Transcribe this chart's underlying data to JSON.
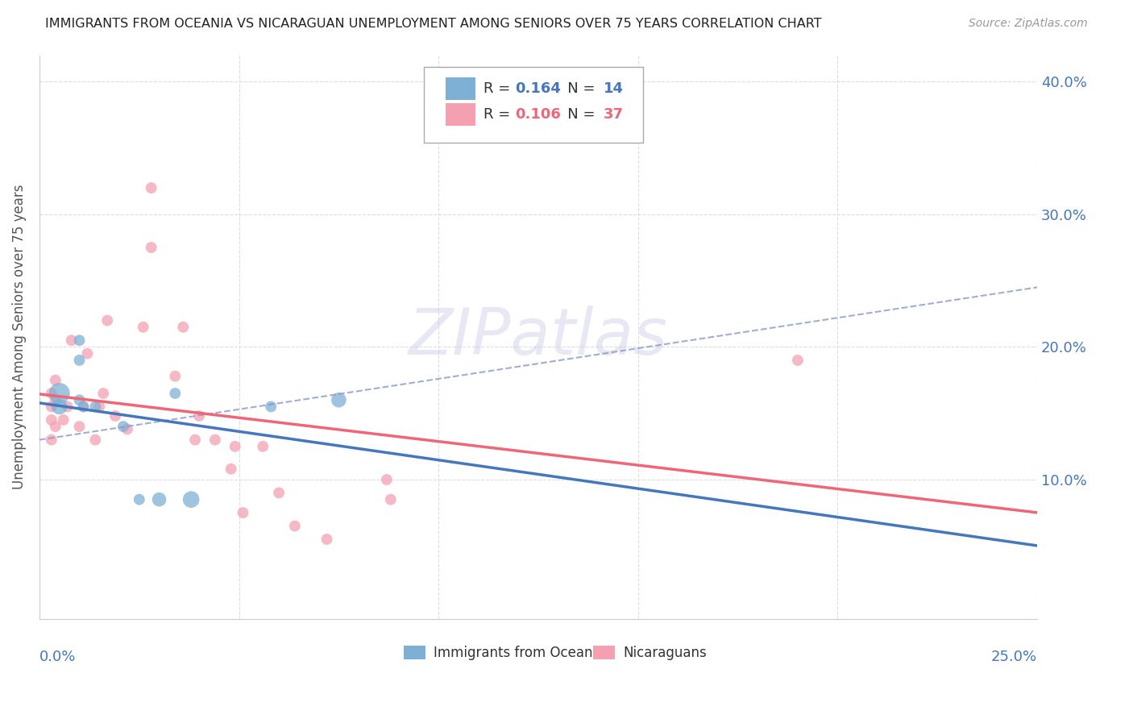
{
  "title": "IMMIGRANTS FROM OCEANIA VS NICARAGUAN UNEMPLOYMENT AMONG SENIORS OVER 75 YEARS CORRELATION CHART",
  "source": "Source: ZipAtlas.com",
  "ylabel": "Unemployment Among Seniors over 75 years",
  "right_yticks": [
    "40.0%",
    "30.0%",
    "20.0%",
    "10.0%"
  ],
  "right_ytick_vals": [
    0.4,
    0.3,
    0.2,
    0.1
  ],
  "legend1_r": "0.164",
  "legend1_n": "14",
  "legend2_r": "0.106",
  "legend2_n": "37",
  "color_blue": "#7EB0D5",
  "color_pink": "#F4A0B0",
  "color_blue_line": "#4477BB",
  "color_pink_line": "#EE6677",
  "color_blue_text": "#4477BB",
  "color_pink_text": "#EE6677",
  "xlim": [
    0.0,
    0.25
  ],
  "ylim": [
    -0.005,
    0.42
  ],
  "oceania_x": [
    0.005,
    0.005,
    0.01,
    0.01,
    0.01,
    0.011,
    0.014,
    0.021,
    0.025,
    0.03,
    0.034,
    0.038,
    0.058,
    0.075
  ],
  "oceania_y": [
    0.155,
    0.165,
    0.205,
    0.19,
    0.16,
    0.155,
    0.155,
    0.14,
    0.085,
    0.085,
    0.165,
    0.085,
    0.155,
    0.16
  ],
  "oceania_size": [
    200,
    350,
    100,
    100,
    100,
    100,
    100,
    100,
    100,
    160,
    100,
    220,
    100,
    180
  ],
  "nicaragua_x": [
    0.003,
    0.003,
    0.003,
    0.003,
    0.004,
    0.004,
    0.004,
    0.006,
    0.007,
    0.008,
    0.01,
    0.011,
    0.012,
    0.014,
    0.015,
    0.016,
    0.017,
    0.019,
    0.022,
    0.026,
    0.028,
    0.028,
    0.034,
    0.036,
    0.039,
    0.04,
    0.044,
    0.048,
    0.049,
    0.051,
    0.056,
    0.06,
    0.064,
    0.072,
    0.087,
    0.088,
    0.19
  ],
  "nicaragua_y": [
    0.13,
    0.145,
    0.155,
    0.165,
    0.14,
    0.16,
    0.175,
    0.145,
    0.155,
    0.205,
    0.14,
    0.155,
    0.195,
    0.13,
    0.155,
    0.165,
    0.22,
    0.148,
    0.138,
    0.215,
    0.32,
    0.275,
    0.178,
    0.215,
    0.13,
    0.148,
    0.13,
    0.108,
    0.125,
    0.075,
    0.125,
    0.09,
    0.065,
    0.055,
    0.1,
    0.085,
    0.19
  ],
  "nicaragua_size": [
    100,
    100,
    100,
    100,
    100,
    100,
    100,
    100,
    100,
    100,
    100,
    100,
    100,
    100,
    100,
    100,
    100,
    100,
    100,
    100,
    100,
    100,
    100,
    100,
    100,
    100,
    100,
    100,
    100,
    100,
    100,
    100,
    100,
    100,
    100,
    100,
    100
  ],
  "dashed_line_x": [
    0.0,
    0.25
  ],
  "dashed_line_y": [
    0.13,
    0.245
  ],
  "grid_color": "#DDDDDD",
  "spine_color": "#CCCCCC"
}
